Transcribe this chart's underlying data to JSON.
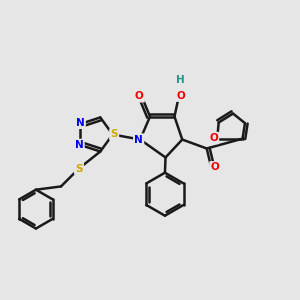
{
  "bg_color": "#e6e6e6",
  "bond_color": "#1a1a1a",
  "bond_width": 1.8,
  "atom_colors": {
    "N": "#0000ee",
    "O": "#ee0000",
    "S": "#ccaa00",
    "C": "#1a1a1a",
    "H": "#2a9090"
  },
  "figsize": [
    3.0,
    3.0
  ],
  "dpi": 100
}
